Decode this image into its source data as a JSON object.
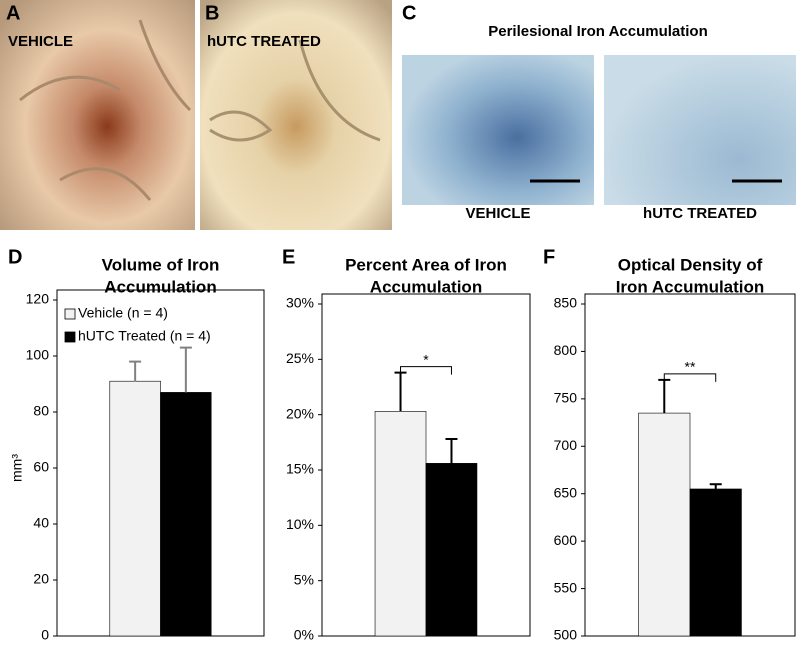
{
  "panels": {
    "a": {
      "letter": "A",
      "label": "VEHICLE"
    },
    "b": {
      "letter": "B",
      "label": "hUTC TREATED"
    },
    "c": {
      "letter": "C",
      "title": "Perilesional Iron Accumulation",
      "labels": [
        "VEHICLE",
        "hUTC TREATED"
      ]
    }
  },
  "chart_data": [
    {
      "type": "bar",
      "panel_label": "D",
      "title": [
        "Volume of Iron",
        "Accumulation"
      ],
      "y_label": "mm³",
      "ylim": [
        0,
        120
      ],
      "yticks": [
        0,
        20,
        40,
        60,
        80,
        100,
        120
      ],
      "series": [
        {
          "name": "Vehicle (n = 4)",
          "color": "#f2f2f2",
          "values": [
            91
          ],
          "errors": [
            7
          ]
        },
        {
          "name": "hUTC Treated (n = 4)",
          "color": "#000000",
          "values": [
            87
          ],
          "errors": [
            16
          ]
        }
      ],
      "error_color": "#808080"
    },
    {
      "type": "bar",
      "panel_label": "E",
      "title": [
        "Percent Area of Iron",
        "Accumulation"
      ],
      "ylim": [
        0,
        30
      ],
      "yticks": [
        {
          "value": 0,
          "label": "0%"
        },
        {
          "value": 5,
          "label": "5%"
        },
        {
          "value": 10,
          "label": "10%"
        },
        {
          "value": 15,
          "label": "15%"
        },
        {
          "value": 20,
          "label": "20%"
        },
        {
          "value": 25,
          "label": "25%"
        },
        {
          "value": 30,
          "label": "30%"
        }
      ],
      "series": [
        {
          "color": "#f2f2f2",
          "values": [
            20.3
          ],
          "errors": [
            3.5
          ]
        },
        {
          "color": "#000000",
          "values": [
            15.6
          ],
          "errors": [
            2.2
          ]
        }
      ],
      "error_color": "#000000",
      "annotation": "*"
    },
    {
      "type": "bar",
      "panel_label": "F",
      "title": [
        "Optical Density of",
        "Iron Accumulation"
      ],
      "ylim": [
        500,
        850
      ],
      "yticks": [
        500,
        550,
        600,
        650,
        700,
        750,
        800,
        850
      ],
      "series": [
        {
          "color": "#f2f2f2",
          "values": [
            735
          ],
          "errors": [
            35
          ]
        },
        {
          "color": "#000000",
          "values": [
            655
          ],
          "errors": [
            5
          ]
        }
      ],
      "error_color": "#000000",
      "annotation": "**"
    }
  ]
}
